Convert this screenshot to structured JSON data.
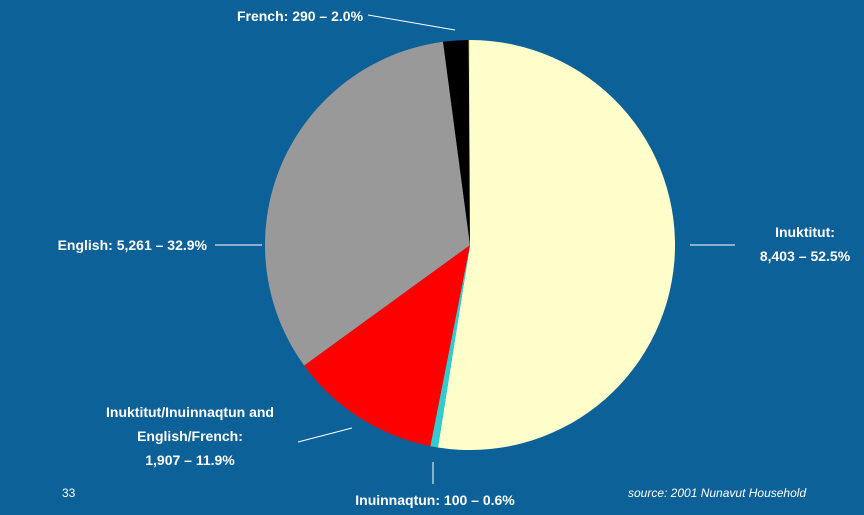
{
  "chart_data": {
    "type": "pie",
    "categories": [
      "Inuktitut:",
      "Inuinnaqtun:",
      "Inuktitut/Inuinnaqtun and English/French:",
      "English:",
      "French:",
      null
    ],
    "values": [
      52.5,
      0.6,
      11.9,
      32.9,
      2.0,
      0.1
    ],
    "value_labels": [
      "8,403 – 52.5%",
      "100 – 0.6%",
      "1,907 – 11.9%",
      "5,261 – 32.9%",
      "290 – 2.0%",
      null
    ],
    "colors": [
      "#ffffcc",
      "#33cccc",
      "#ff0000",
      "#999999",
      "#000000",
      "#ffff00"
    ],
    "source": "source: 2001 Nunavut Household",
    "page_number": "33"
  }
}
